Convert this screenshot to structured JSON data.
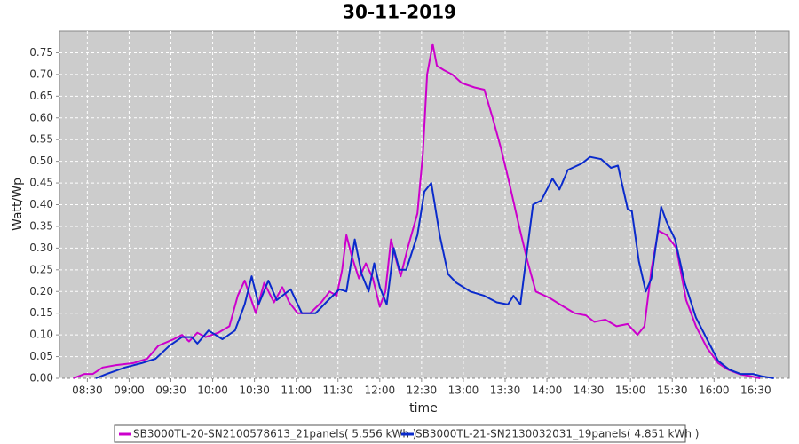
{
  "chart_data": {
    "type": "line",
    "title": "30-11-2019",
    "x_label": "time",
    "y_label": "Watt/Wp",
    "xlim": [
      "08:10",
      "16:54"
    ],
    "xticks": [
      "08:30",
      "09:00",
      "09:30",
      "10:00",
      "10:30",
      "11:00",
      "11:30",
      "12:00",
      "12:30",
      "13:00",
      "13:30",
      "14:00",
      "14:30",
      "15:00",
      "15:30",
      "16:00",
      "16:30"
    ],
    "ylim": [
      0,
      0.8
    ],
    "yticks": [
      {
        "value": 0,
        "label": "0.00"
      },
      {
        "value": 0.05,
        "label": "0.05"
      },
      {
        "value": 0.1,
        "label": "0.10"
      },
      {
        "value": 0.15,
        "label": "0.15"
      },
      {
        "value": 0.2,
        "label": "0.20"
      },
      {
        "value": 0.25,
        "label": "0.25"
      },
      {
        "value": 0.3,
        "label": "0.30"
      },
      {
        "value": 0.35,
        "label": "0.35"
      },
      {
        "value": 0.4,
        "label": "0.40"
      },
      {
        "value": 0.45,
        "label": "0.45"
      },
      {
        "value": 0.5,
        "label": "0.50"
      },
      {
        "value": 0.55,
        "label": "0.55"
      },
      {
        "value": 0.6,
        "label": "0.60"
      },
      {
        "value": 0.65,
        "label": "0.65"
      },
      {
        "value": 0.7,
        "label": "0.70"
      },
      {
        "value": 0.75,
        "label": "0.75"
      }
    ],
    "grid": true,
    "legend": "bottom",
    "series": [
      {
        "name": "SB3000TL-20-SN2100578613_21panels( 5.556 kWh )",
        "color": "#cc00cc",
        "x": [
          "08:20",
          "08:28",
          "08:34",
          "08:41",
          "08:50",
          "09:03",
          "09:13",
          "09:21",
          "09:32",
          "09:38",
          "09:43",
          "09:49",
          "09:55",
          "10:04",
          "10:12",
          "10:18",
          "10:23",
          "10:31",
          "10:37",
          "10:44",
          "10:50",
          "10:55",
          "11:01",
          "11:10",
          "11:18",
          "11:24",
          "11:29",
          "11:33",
          "11:36",
          "11:40",
          "11:45",
          "11:50",
          "11:55",
          "12:00",
          "12:04",
          "12:08",
          "12:12",
          "12:15",
          "12:20",
          "12:27",
          "12:31",
          "12:34",
          "12:38",
          "12:41",
          "12:46",
          "12:52",
          "12:59",
          "13:08",
          "13:15",
          "13:21",
          "13:27",
          "13:33",
          "13:40",
          "13:46",
          "13:52",
          "14:02",
          "14:12",
          "14:20",
          "14:28",
          "14:34",
          "14:42",
          "14:50",
          "14:58",
          "15:05",
          "15:10",
          "15:15",
          "15:20",
          "15:26",
          "15:33",
          "15:40",
          "15:47",
          "15:55",
          "16:03",
          "16:10",
          "16:18",
          "16:26",
          "16:33"
        ],
        "values": [
          0,
          0.01,
          0.01,
          0.025,
          0.03,
          0.035,
          0.045,
          0.075,
          0.09,
          0.1,
          0.085,
          0.105,
          0.095,
          0.105,
          0.12,
          0.19,
          0.225,
          0.15,
          0.22,
          0.175,
          0.21,
          0.175,
          0.15,
          0.15,
          0.175,
          0.2,
          0.19,
          0.25,
          0.33,
          0.28,
          0.23,
          0.265,
          0.23,
          0.165,
          0.2,
          0.32,
          0.27,
          0.235,
          0.3,
          0.38,
          0.52,
          0.7,
          0.77,
          0.72,
          0.71,
          0.7,
          0.68,
          0.67,
          0.665,
          0.6,
          0.53,
          0.45,
          0.35,
          0.27,
          0.2,
          0.185,
          0.165,
          0.15,
          0.145,
          0.13,
          0.135,
          0.12,
          0.125,
          0.1,
          0.12,
          0.25,
          0.34,
          0.33,
          0.3,
          0.18,
          0.12,
          0.07,
          0.035,
          0.02,
          0.01,
          0.005,
          0
        ]
      },
      {
        "name": "SB3000TL-21-SN2130032031_19panels( 4.851 kWh )",
        "color": "#0a2bcc",
        "x": [
          "08:36",
          "08:44",
          "08:57",
          "09:09",
          "09:19",
          "09:29",
          "09:38",
          "09:45",
          "09:49",
          "09:57",
          "10:07",
          "10:16",
          "10:23",
          "10:28",
          "10:33",
          "10:40",
          "10:46",
          "10:56",
          "11:04",
          "11:14",
          "11:23",
          "11:31",
          "11:36",
          "11:42",
          "11:47",
          "11:52",
          "11:56",
          "12:00",
          "12:05",
          "12:10",
          "12:14",
          "12:19",
          "12:27",
          "12:32",
          "12:37",
          "12:43",
          "12:49",
          "12:55",
          "13:05",
          "13:15",
          "13:24",
          "13:32",
          "13:36",
          "13:41",
          "13:46",
          "13:50",
          "13:56",
          "14:04",
          "14:09",
          "14:15",
          "14:25",
          "14:31",
          "14:39",
          "14:46",
          "14:51",
          "14:58",
          "15:01",
          "15:06",
          "15:11",
          "15:15",
          "15:22",
          "15:26",
          "15:32",
          "15:39",
          "15:47",
          "15:55",
          "16:03",
          "16:11",
          "16:19",
          "16:28",
          "16:34",
          "16:43"
        ],
        "values": [
          0,
          0.01,
          0.025,
          0.035,
          0.045,
          0.075,
          0.095,
          0.095,
          0.08,
          0.11,
          0.09,
          0.11,
          0.17,
          0.235,
          0.17,
          0.225,
          0.18,
          0.205,
          0.15,
          0.15,
          0.18,
          0.205,
          0.2,
          0.32,
          0.24,
          0.2,
          0.265,
          0.21,
          0.17,
          0.3,
          0.25,
          0.25,
          0.33,
          0.43,
          0.45,
          0.33,
          0.24,
          0.22,
          0.2,
          0.19,
          0.175,
          0.17,
          0.19,
          0.17,
          0.3,
          0.4,
          0.41,
          0.46,
          0.435,
          0.48,
          0.495,
          0.51,
          0.505,
          0.485,
          0.49,
          0.39,
          0.385,
          0.27,
          0.2,
          0.23,
          0.395,
          0.36,
          0.32,
          0.22,
          0.14,
          0.09,
          0.04,
          0.02,
          0.01,
          0.01,
          0.005,
          0
        ]
      }
    ]
  }
}
